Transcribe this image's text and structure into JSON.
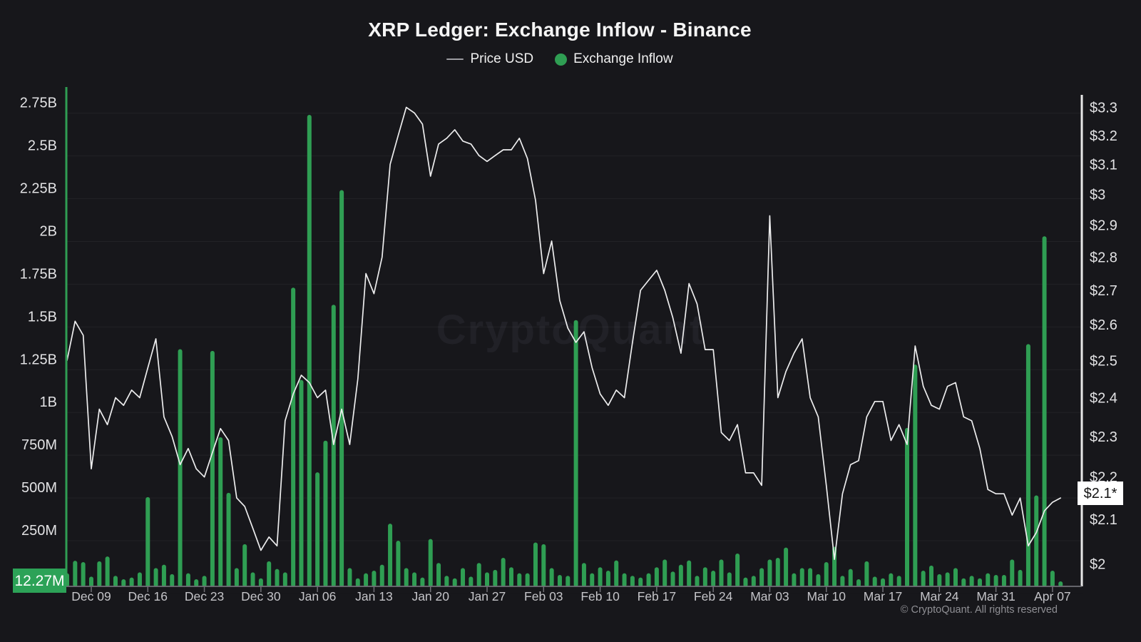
{
  "title": "XRP Ledger: Exchange Inflow - Binance",
  "legend": {
    "price_label": "Price USD",
    "inflow_label": "Exchange Inflow"
  },
  "watermark": "CryptoQuant",
  "copyright": "© CryptoQuant. All rights reserved",
  "colors": {
    "background": "#17171b",
    "inflow_green": "#2f9e53",
    "badge_green": "#2ca257",
    "price_line": "#ededee",
    "grid": "rgba(255,255,255,0.05)",
    "axis_bottom": "#6f6f76",
    "right_spine": "#e8e8e8",
    "tick_label": "#e2e2e4",
    "date_label": "#c4c4c8",
    "watermark_fill": "#212127"
  },
  "left_axis": {
    "title": "Exchange Inflow",
    "tick_labels": [
      "250M",
      "500M",
      "750M",
      "1B",
      "1.25B",
      "1.5B",
      "1.75B",
      "2B",
      "2.25B",
      "2.5B",
      "2.75B"
    ],
    "tick_values_m": [
      250,
      500,
      750,
      1000,
      1250,
      1500,
      1750,
      2000,
      2250,
      2500,
      2750
    ],
    "current_value_badge": "12.27M"
  },
  "right_axis": {
    "title": "Price USD",
    "tick_labels": [
      "$2",
      "$2.1",
      "$2.2",
      "$2.3",
      "$2.4",
      "$2.5",
      "$2.6",
      "$2.7",
      "$2.8",
      "$2.9",
      "$3",
      "$3.1",
      "$3.2",
      "$3.3"
    ],
    "tick_values": [
      2,
      2.1,
      2.2,
      2.3,
      2.4,
      2.5,
      2.6,
      2.7,
      2.8,
      2.9,
      3,
      3.1,
      3.2,
      3.3
    ],
    "scale": "log",
    "current_value_badge": "$2.1*"
  },
  "x_axis": {
    "tick_labels": [
      "Dec 09",
      "Dec 16",
      "Dec 23",
      "Dec 30",
      "Jan 06",
      "Jan 13",
      "Jan 20",
      "Jan 27",
      "Feb 03",
      "Feb 10",
      "Feb 17",
      "Feb 24",
      "Mar 03",
      "Mar 10",
      "Mar 17",
      "Mar 24",
      "Mar 31",
      "Apr 07"
    ],
    "first_tick_index": 3,
    "tick_step_days": 7
  },
  "chart_data": {
    "type": [
      "bar",
      "line"
    ],
    "frequency": "daily",
    "start_date": "Dec 06",
    "end_date": "Apr 08",
    "left_ylim_m": [
      0,
      2915
    ],
    "right_ylim_usd": [
      1.98,
      3.32
    ],
    "series": [
      {
        "name": "Exchange Inflow",
        "axis": "left",
        "unit": "USD (M = millions, B = billions)",
        "style": "bar",
        "values_millions": [
          60,
          133,
          125,
          40,
          130,
          158,
          45,
          25,
          35,
          65,
          505,
          90,
          110,
          55,
          1370,
          60,
          25,
          45,
          1360,
          855,
          530,
          90,
          230,
          65,
          30,
          130,
          85,
          65,
          1730,
          1190,
          2740,
          650,
          835,
          1630,
          2300,
          90,
          30,
          60,
          75,
          110,
          350,
          250,
          90,
          65,
          35,
          260,
          120,
          45,
          30,
          90,
          40,
          120,
          65,
          80,
          150,
          95,
          60,
          60,
          240,
          230,
          90,
          50,
          45,
          1540,
          120,
          60,
          95,
          75,
          135,
          60,
          45,
          35,
          60,
          95,
          140,
          70,
          110,
          135,
          45,
          95,
          75,
          140,
          65,
          175,
          35,
          45,
          90,
          140,
          150,
          210,
          60,
          90,
          90,
          55,
          125,
          215,
          45,
          85,
          25,
          130,
          40,
          30,
          60,
          45,
          910,
          1280,
          75,
          105,
          55,
          65,
          90,
          30,
          45,
          30,
          60,
          50,
          50,
          140,
          80,
          1400,
          515,
          2030,
          75,
          12.27
        ]
      },
      {
        "name": "Price USD",
        "axis": "right",
        "unit": "USD",
        "style": "line",
        "values_usd": [
          2.5,
          2.61,
          2.57,
          2.22,
          2.37,
          2.33,
          2.4,
          2.38,
          2.42,
          2.4,
          2.48,
          2.56,
          2.35,
          2.3,
          2.23,
          2.27,
          2.22,
          2.2,
          2.26,
          2.32,
          2.29,
          2.15,
          2.13,
          2.08,
          2.03,
          2.06,
          2.04,
          2.34,
          2.41,
          2.46,
          2.44,
          2.4,
          2.42,
          2.28,
          2.37,
          2.28,
          2.45,
          2.75,
          2.69,
          2.8,
          3.1,
          3.2,
          3.3,
          3.28,
          3.24,
          3.06,
          3.17,
          3.19,
          3.22,
          3.18,
          3.17,
          3.13,
          3.11,
          3.13,
          3.15,
          3.15,
          3.19,
          3.12,
          2.98,
          2.75,
          2.85,
          2.67,
          2.59,
          2.55,
          2.58,
          2.48,
          2.41,
          2.38,
          2.42,
          2.4,
          2.55,
          2.7,
          2.73,
          2.76,
          2.7,
          2.62,
          2.52,
          2.72,
          2.66,
          2.53,
          2.53,
          2.31,
          2.29,
          2.33,
          2.21,
          2.21,
          2.18,
          2.93,
          2.4,
          2.47,
          2.52,
          2.56,
          2.4,
          2.35,
          2.18,
          2.01,
          2.16,
          2.23,
          2.24,
          2.35,
          2.39,
          2.39,
          2.29,
          2.33,
          2.28,
          2.54,
          2.43,
          2.38,
          2.37,
          2.43,
          2.44,
          2.35,
          2.34,
          2.27,
          2.17,
          2.16,
          2.16,
          2.11,
          2.15,
          2.04,
          2.07,
          2.12,
          2.14,
          2.15
        ]
      }
    ],
    "annotations": {
      "last_inflow_label": "12.27M",
      "last_price_label": "$2.1*"
    }
  }
}
